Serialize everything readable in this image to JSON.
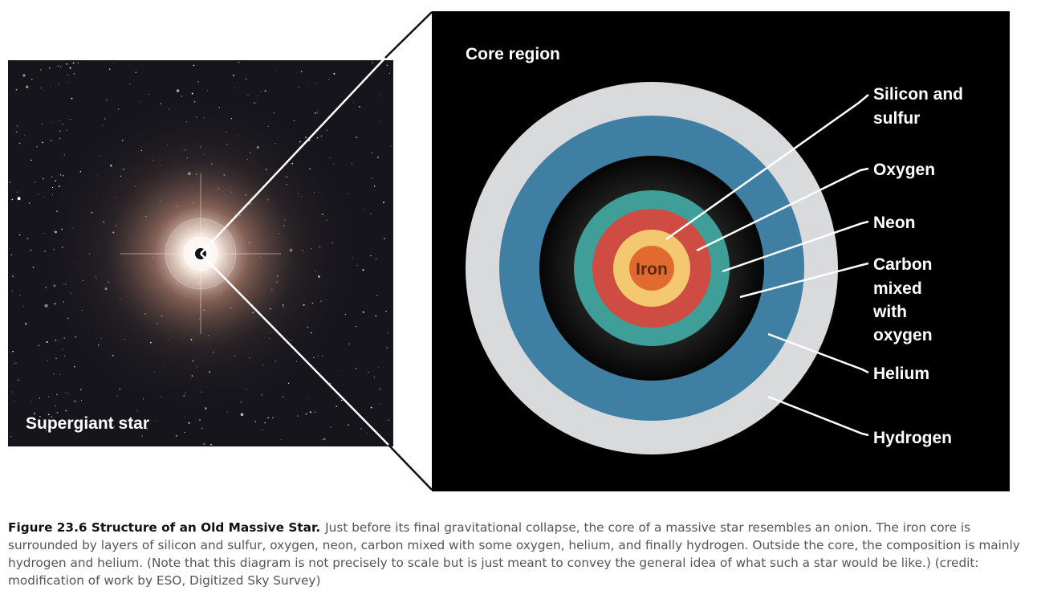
{
  "labels": {
    "supergiant": "Supergiant star",
    "core_region": "Core region",
    "iron": "Iron",
    "silicon_line1": "Silicon and",
    "silicon_line2": "sulfur",
    "oxygen": "Oxygen",
    "neon": "Neon",
    "carbon_line1": "Carbon",
    "carbon_line2": "mixed",
    "carbon_line3": "with",
    "carbon_line4": "oxygen",
    "helium": "Helium",
    "hydrogen": "Hydrogen"
  },
  "layer_colors": {
    "hydrogen": "#d9dadb",
    "helium": "#3f7fa3",
    "carbon_oxygen": "#0d0d0d",
    "neon": "#3f9e97",
    "oxygen": "#cf4c43",
    "silicon_sulfur": "#f3c870",
    "iron": "#e06a30"
  },
  "caption": {
    "title": "Figure 23.6 Structure of an Old Massive Star.",
    "text": "Just before its final gravitational collapse, the core of a massive star resembles an onion. The iron core is surrounded by layers of silicon and sulfur, oxygen, neon, carbon mixed with some oxygen, helium, and finally hydrogen. Outside the core, the composition is mainly hydrogen and helium. (Note that this diagram is not precisely to scale but is just meant to convey the general idea of what such a star would be like.) (credit: modification of work by ESO, Digitized Sky Survey)"
  }
}
